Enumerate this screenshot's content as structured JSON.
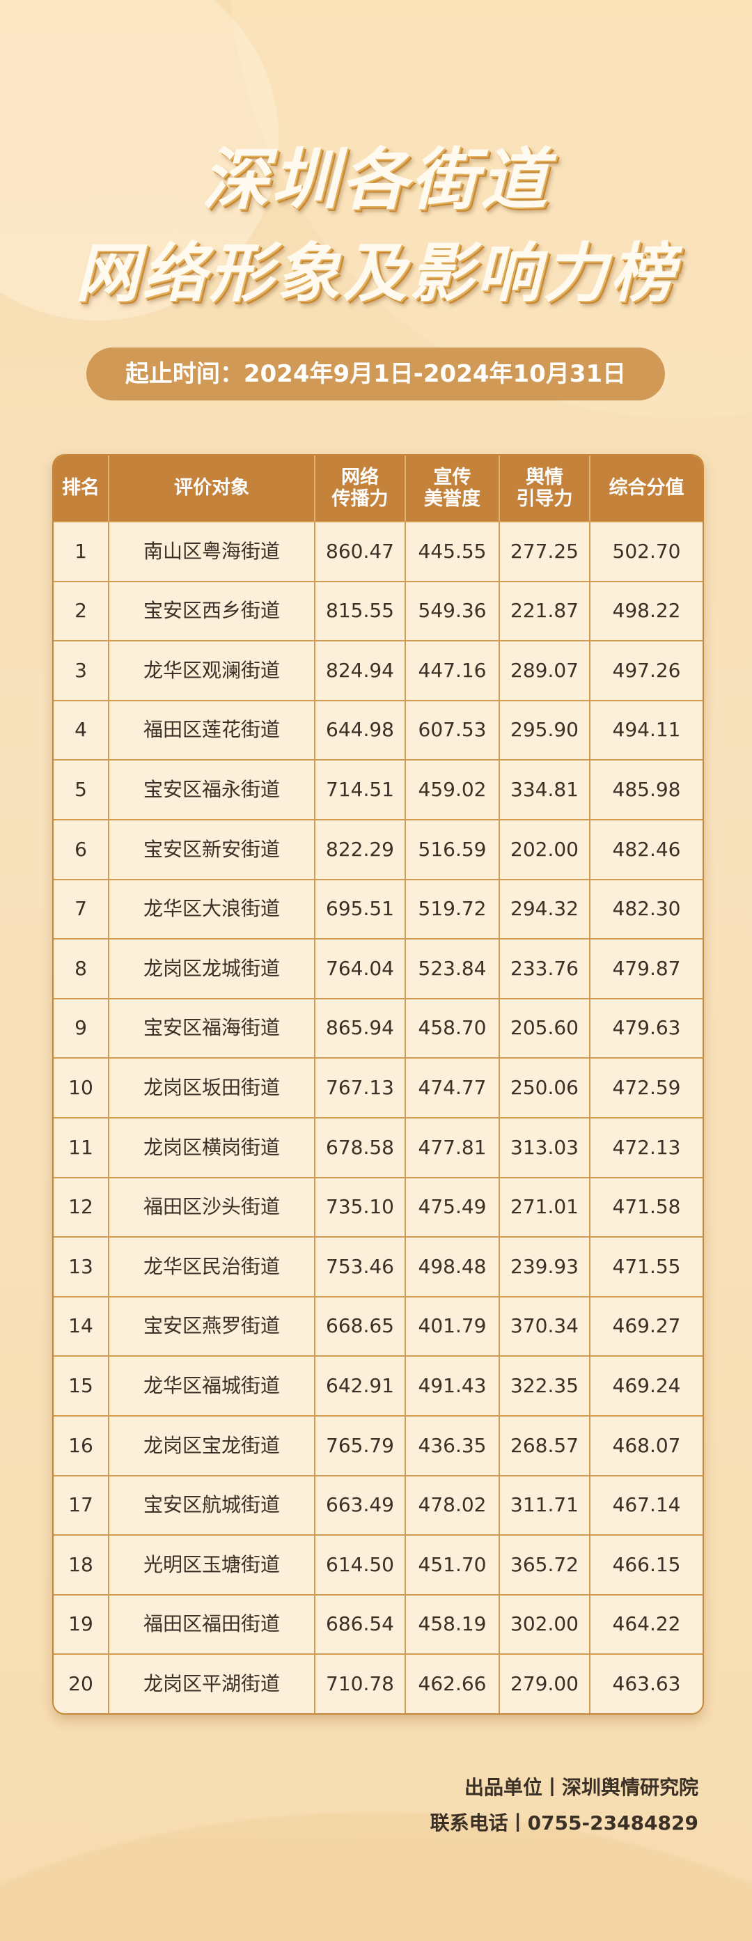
{
  "title": {
    "line1": "深圳各街道",
    "line2": "网络形象及影响力榜"
  },
  "period": "起止时间：2024年9月1日-2024年10月31日",
  "table": {
    "headers": [
      "排名",
      "评价对象",
      "网络\n传播力",
      "宣传\n美誉度",
      "舆情\n引导力",
      "综合分值"
    ],
    "rows": [
      [
        "1",
        "南山区粤海街道",
        "860.47",
        "445.55",
        "277.25",
        "502.70"
      ],
      [
        "2",
        "宝安区西乡街道",
        "815.55",
        "549.36",
        "221.87",
        "498.22"
      ],
      [
        "3",
        "龙华区观澜街道",
        "824.94",
        "447.16",
        "289.07",
        "497.26"
      ],
      [
        "4",
        "福田区莲花街道",
        "644.98",
        "607.53",
        "295.90",
        "494.11"
      ],
      [
        "5",
        "宝安区福永街道",
        "714.51",
        "459.02",
        "334.81",
        "485.98"
      ],
      [
        "6",
        "宝安区新安街道",
        "822.29",
        "516.59",
        "202.00",
        "482.46"
      ],
      [
        "7",
        "龙华区大浪街道",
        "695.51",
        "519.72",
        "294.32",
        "482.30"
      ],
      [
        "8",
        "龙岗区龙城街道",
        "764.04",
        "523.84",
        "233.76",
        "479.87"
      ],
      [
        "9",
        "宝安区福海街道",
        "865.94",
        "458.70",
        "205.60",
        "479.63"
      ],
      [
        "10",
        "龙岗区坂田街道",
        "767.13",
        "474.77",
        "250.06",
        "472.59"
      ],
      [
        "11",
        "龙岗区横岗街道",
        "678.58",
        "477.81",
        "313.03",
        "472.13"
      ],
      [
        "12",
        "福田区沙头街道",
        "735.10",
        "475.49",
        "271.01",
        "471.58"
      ],
      [
        "13",
        "龙华区民治街道",
        "753.46",
        "498.48",
        "239.93",
        "471.55"
      ],
      [
        "14",
        "宝安区燕罗街道",
        "668.65",
        "401.79",
        "370.34",
        "469.27"
      ],
      [
        "15",
        "龙华区福城街道",
        "642.91",
        "491.43",
        "322.35",
        "469.24"
      ],
      [
        "16",
        "龙岗区宝龙街道",
        "765.79",
        "436.35",
        "268.57",
        "468.07"
      ],
      [
        "17",
        "宝安区航城街道",
        "663.49",
        "478.02",
        "311.71",
        "467.14"
      ],
      [
        "18",
        "光明区玉塘街道",
        "614.50",
        "451.70",
        "365.72",
        "466.15"
      ],
      [
        "19",
        "福田区福田街道",
        "686.54",
        "458.19",
        "302.00",
        "464.22"
      ],
      [
        "20",
        "龙岗区平湖街道",
        "710.78",
        "462.66",
        "279.00",
        "463.63"
      ]
    ]
  },
  "footer": {
    "producer": "出品单位丨深圳舆情研究院",
    "phone": "联系电话丨0755-23484829"
  },
  "colors": {
    "header_bg": "#c4823a",
    "pill_bg": "#d09a56",
    "cell_bg": "#fdf0db",
    "page_bg": "#f7ddb1"
  }
}
